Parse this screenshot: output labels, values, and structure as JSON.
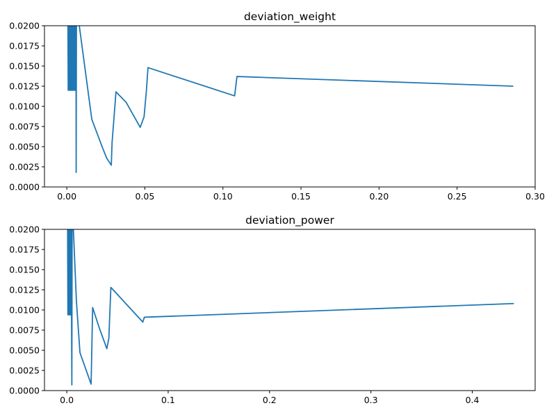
{
  "chart_data": [
    {
      "type": "line",
      "title": "deviation_weight",
      "xlabel": "",
      "ylabel": "",
      "xlim": [
        -0.0143,
        0.3
      ],
      "ylim": [
        0.0,
        0.02
      ],
      "xticks": [
        "0.00",
        "0.05",
        "0.10",
        "0.15",
        "0.20",
        "0.25",
        "0.30"
      ],
      "xtick_values": [
        0.0,
        0.05,
        0.1,
        0.15,
        0.2,
        0.25,
        0.3
      ],
      "yticks": [
        "0.0000",
        "0.0025",
        "0.0050",
        "0.0075",
        "0.0100",
        "0.0125",
        "0.0150",
        "0.0175",
        "0.0200"
      ],
      "ytick_values": [
        0.0,
        0.0025,
        0.005,
        0.0075,
        0.01,
        0.0125,
        0.015,
        0.0175,
        0.02
      ],
      "grid": false,
      "legend": "none",
      "color": "#1f77b4",
      "series": [
        {
          "x": [
            0.0007,
            0.0009,
            0.0011,
            0.0013,
            0.0015,
            0.0017,
            0.0019,
            0.0021,
            0.0023,
            0.0025,
            0.0027,
            0.0029,
            0.0031,
            0.0033,
            0.0035,
            0.0037,
            0.0039,
            0.0041,
            0.0043,
            0.0045,
            0.0047,
            0.0049,
            0.0051,
            0.0053,
            0.0055,
            0.0057,
            0.0059,
            0.006,
            0.0062,
            0.0066,
            0.008,
            0.016,
            0.023,
            0.0255,
            0.0285,
            0.029,
            0.0315,
            0.038,
            0.047,
            0.0495,
            0.051,
            0.052,
            0.1075,
            0.109,
            0.286
          ],
          "y": [
            0.0215,
            0.012,
            0.0215,
            0.012,
            0.0215,
            0.012,
            0.0215,
            0.012,
            0.0215,
            0.012,
            0.0215,
            0.012,
            0.0215,
            0.012,
            0.0215,
            0.012,
            0.0215,
            0.012,
            0.0215,
            0.012,
            0.0215,
            0.012,
            0.0215,
            0.012,
            0.0215,
            0.012,
            0.0215,
            0.0018,
            0.0235,
            0.021,
            0.02,
            0.0084,
            0.0048,
            0.0036,
            0.0027,
            0.0055,
            0.0118,
            0.0105,
            0.0074,
            0.0087,
            0.012,
            0.0148,
            0.0113,
            0.0137,
            0.0125
          ]
        }
      ]
    },
    {
      "type": "line",
      "title": "deviation_power",
      "xlabel": "",
      "ylabel": "",
      "xlim": [
        -0.022,
        0.462
      ],
      "ylim": [
        0.0,
        0.02
      ],
      "xticks": [
        "0.0",
        "0.1",
        "0.2",
        "0.3",
        "0.4"
      ],
      "xtick_values": [
        0.0,
        0.1,
        0.2,
        0.3,
        0.4
      ],
      "yticks": [
        "0.0000",
        "0.0025",
        "0.0050",
        "0.0075",
        "0.0100",
        "0.0125",
        "0.0150",
        "0.0175",
        "0.0200"
      ],
      "ytick_values": [
        0.0,
        0.0025,
        0.005,
        0.0075,
        0.01,
        0.0125,
        0.015,
        0.0175,
        0.02
      ],
      "grid": false,
      "legend": "none",
      "color": "#1f77b4",
      "series": [
        {
          "x": [
            0.0008,
            0.0011,
            0.0014,
            0.0017,
            0.002,
            0.0023,
            0.0026,
            0.0029,
            0.0032,
            0.0035,
            0.0038,
            0.0041,
            0.0044,
            0.0047,
            0.005,
            0.0053,
            0.0056,
            0.0065,
            0.0095,
            0.013,
            0.024,
            0.0255,
            0.032,
            0.0395,
            0.0415,
            0.0425,
            0.0435,
            0.075,
            0.0765,
            0.441
          ],
          "y": [
            0.021,
            0.0094,
            0.021,
            0.0094,
            0.021,
            0.0094,
            0.021,
            0.0094,
            0.021,
            0.0094,
            0.021,
            0.0094,
            0.021,
            0.0094,
            0.0007,
            0.023,
            0.0215,
            0.02,
            0.0111,
            0.0047,
            0.0008,
            0.0103,
            0.0078,
            0.0052,
            0.0065,
            0.0097,
            0.0128,
            0.0085,
            0.0091,
            0.0108
          ]
        }
      ]
    }
  ]
}
